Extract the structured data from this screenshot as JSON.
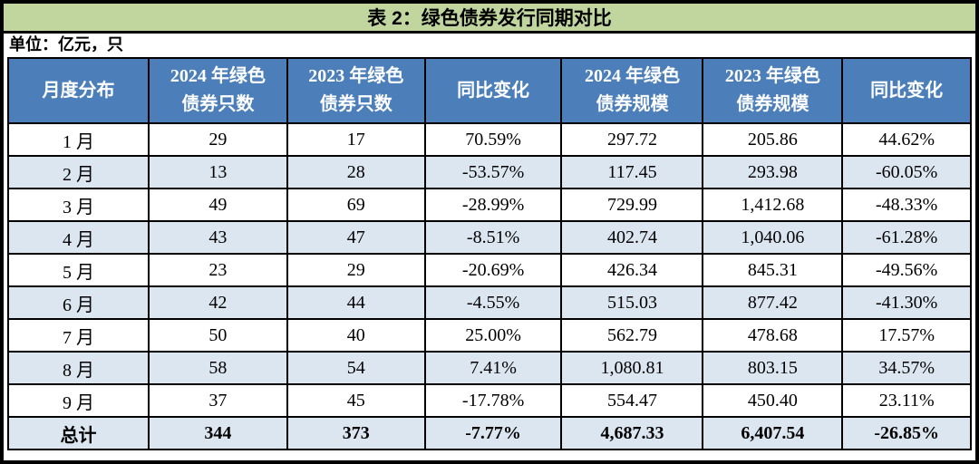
{
  "title": "表 2：绿色债券发行同期对比",
  "unit_note": "单位：亿元，只",
  "table": {
    "columns": [
      "月度分布",
      "2024 年绿色\n债券只数",
      "2023 年绿色\n债券只数",
      "同比变化",
      "2024 年绿色\n债券规模",
      "2023 年绿色\n债券规模",
      "同比变化"
    ],
    "rows": [
      [
        "1 月",
        "29",
        "17",
        "70.59%",
        "297.72",
        "205.86",
        "44.62%"
      ],
      [
        "2 月",
        "13",
        "28",
        "-53.57%",
        "117.45",
        "293.98",
        "-60.05%"
      ],
      [
        "3 月",
        "49",
        "69",
        "-28.99%",
        "729.99",
        "1,412.68",
        "-48.33%"
      ],
      [
        "4 月",
        "43",
        "47",
        "-8.51%",
        "402.74",
        "1,040.06",
        "-61.28%"
      ],
      [
        "5 月",
        "23",
        "29",
        "-20.69%",
        "426.34",
        "845.31",
        "-49.56%"
      ],
      [
        "6 月",
        "42",
        "44",
        "-4.55%",
        "515.03",
        "877.42",
        "-41.30%"
      ],
      [
        "7 月",
        "50",
        "40",
        "25.00%",
        "562.79",
        "478.68",
        "17.57%"
      ],
      [
        "8 月",
        "58",
        "54",
        "7.41%",
        "1,080.81",
        "803.15",
        "34.57%"
      ],
      [
        "9 月",
        "37",
        "45",
        "-17.78%",
        "554.47",
        "450.40",
        "23.11%"
      ]
    ],
    "total_row": [
      "总计",
      "344",
      "373",
      "-7.77%",
      "4,687.33",
      "6,407.54",
      "-26.85%"
    ]
  },
  "colors": {
    "title_bg": "#c1d69e",
    "header_bg": "#4c7fba",
    "header_text": "#ffffff",
    "row_bg": "#ffffff",
    "row_alt_bg": "#dce6f1",
    "border": "#000000"
  }
}
